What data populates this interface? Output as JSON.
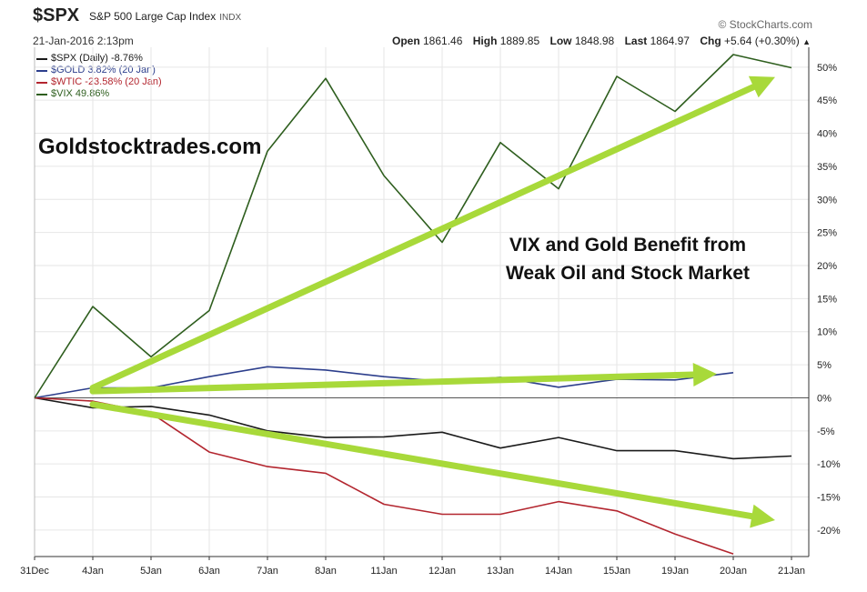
{
  "header": {
    "symbol": "$SPX",
    "name": "S&P 500 Large Cap Index",
    "exchange": "INDX",
    "datetime": "21-Jan-2016 2:13pm",
    "credit": "© StockCharts.com",
    "open_label": "Open",
    "open": "1861.46",
    "high_label": "High",
    "high": "1889.85",
    "low_label": "Low",
    "low": "1848.98",
    "last_label": "Last",
    "last": "1864.97",
    "chg_label": "Chg",
    "chg": "+5.64 (+0.30%)",
    "chg_arrow": "▲"
  },
  "watermark": "Goldstocktrades.com",
  "annotation": {
    "line1": "VIX and Gold Benefit from",
    "line2": "Weak Oil and Stock Market"
  },
  "colors": {
    "spx": "#1a1a1a",
    "gold": "#2c3e8c",
    "wtic": "#b3262f",
    "vix": "#2e5e1e",
    "arrow": "#a8d93a",
    "grid": "#e6e6e6",
    "axis": "#333333"
  },
  "chart_data": {
    "type": "line",
    "x": [
      "31Dec",
      "4Jan",
      "5Jan",
      "6Jan",
      "7Jan",
      "8Jan",
      "11Jan",
      "12Jan",
      "13Jan",
      "14Jan",
      "15Jan",
      "19Jan",
      "20Jan",
      "21Jan"
    ],
    "ylim": [
      -24,
      53
    ],
    "yticks": [
      50,
      45,
      40,
      35,
      30,
      25,
      20,
      15,
      10,
      5,
      0,
      -5,
      -10,
      -15,
      -20
    ],
    "ytick_labels": [
      "50%",
      "45%",
      "40%",
      "35%",
      "30%",
      "25%",
      "20%",
      "15%",
      "10%",
      "5%",
      "0%",
      "-5%",
      "-10%",
      "-15%",
      "-20%"
    ],
    "grid": true,
    "legend_position": "top-left",
    "series": [
      {
        "name": "$SPX (Daily) -8.76%",
        "key": "spx",
        "values": [
          0,
          -1.5,
          -1.3,
          -2.6,
          -5.0,
          -6.0,
          -5.9,
          -5.2,
          -7.6,
          -6.0,
          -8.0,
          -8.0,
          -9.2,
          -8.8
        ]
      },
      {
        "name": "$GOLD 3.82% (20 Jan)",
        "key": "gold",
        "values": [
          0,
          1.5,
          1.5,
          3.2,
          4.7,
          4.2,
          3.2,
          2.5,
          3.1,
          1.6,
          2.8,
          2.7,
          3.8,
          null
        ]
      },
      {
        "name": "$WTIC -23.58% (20 Jan)",
        "key": "wtic",
        "values": [
          0,
          -0.5,
          -2.3,
          -8.2,
          -10.4,
          -11.4,
          -16.1,
          -17.6,
          -17.6,
          -15.7,
          -17.1,
          -20.6,
          -23.6,
          null
        ]
      },
      {
        "name": "$VIX 49.86%",
        "key": "vix",
        "values": [
          0,
          13.8,
          6.2,
          13.2,
          37.3,
          48.3,
          33.6,
          23.5,
          38.6,
          31.6,
          48.6,
          43.3,
          51.9,
          49.9
        ]
      }
    ],
    "trend_arrows": [
      {
        "from": [
          "4Jan",
          1.5
        ],
        "to": [
          "21Jan",
          48.5
        ]
      },
      {
        "from": [
          "4Jan",
          1.0
        ],
        "to": [
          "20Jan",
          3.6
        ]
      },
      {
        "from": [
          "4Jan",
          -1.0
        ],
        "to": [
          "21Jan",
          -18.5
        ]
      }
    ]
  }
}
